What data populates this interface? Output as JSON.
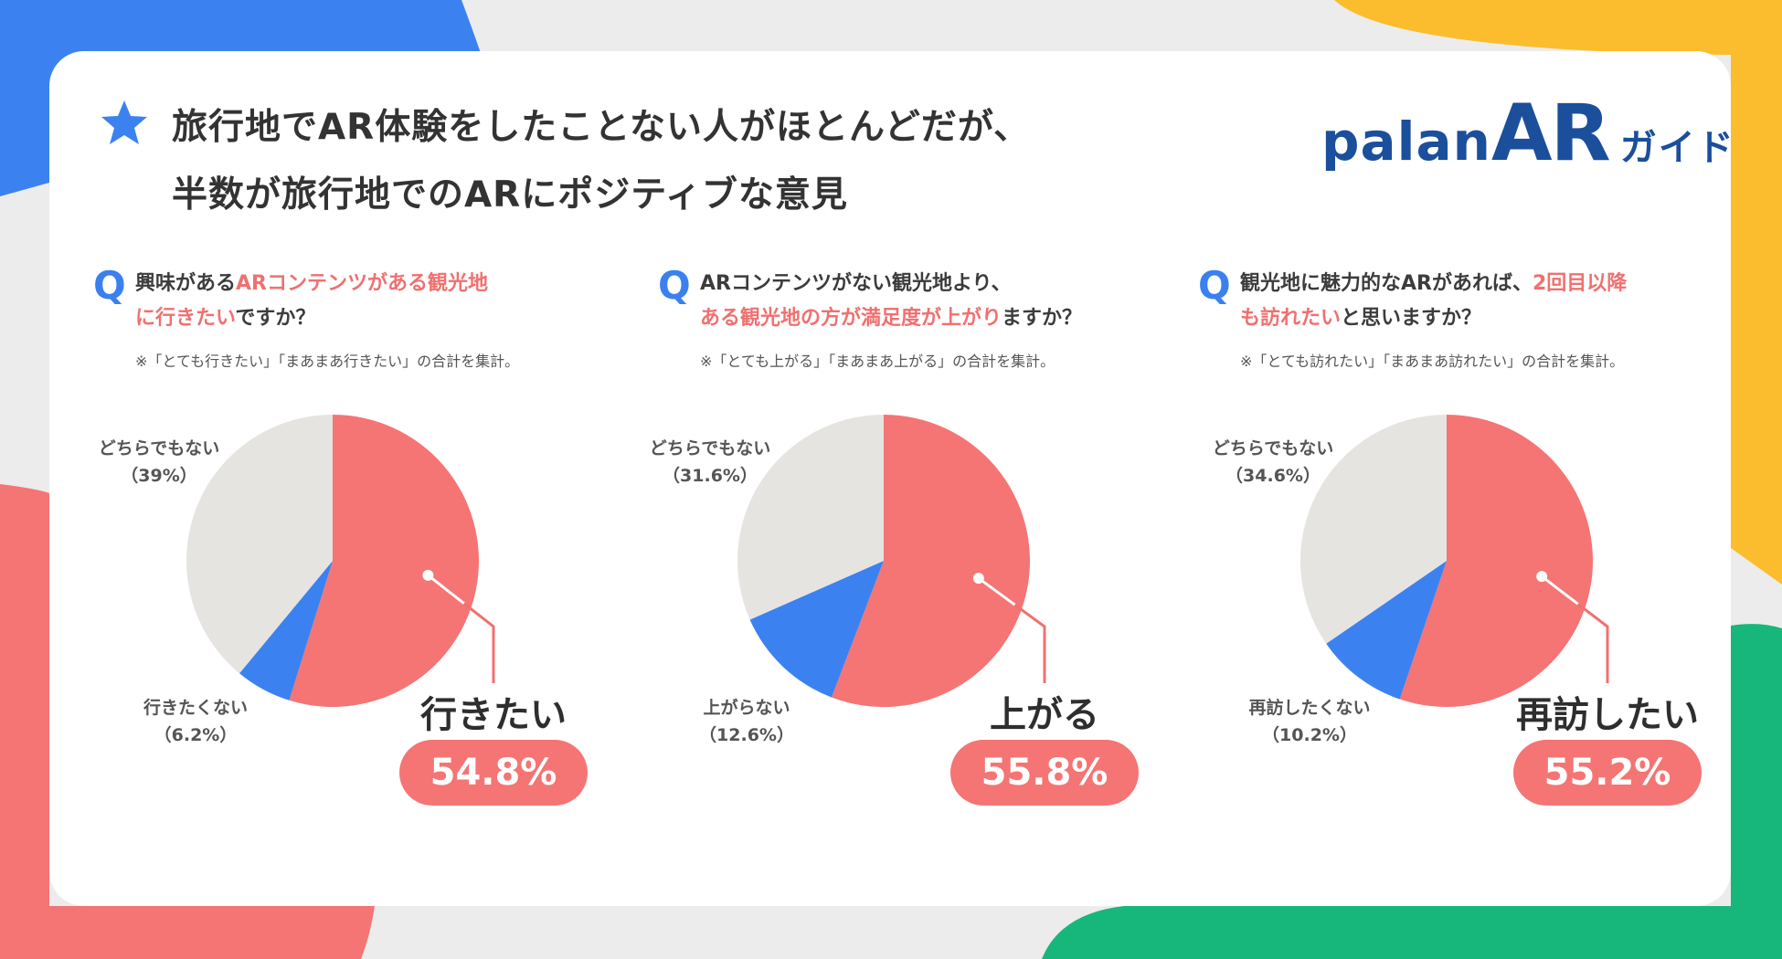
{
  "header": {
    "title_line1": "旅行地でAR体験をしたことない人がほとんどだが、",
    "title_line2": "半数が旅行地でのARにポジティブな意見"
  },
  "logo": {
    "part1": "palan",
    "part2": "AR",
    "part3": "ガイド",
    "color": "#1b4f9c"
  },
  "colors": {
    "positive": "#f57474",
    "negative": "#3b82f0",
    "neutral": "#e6e4e1"
  },
  "chart_data": [
    {
      "type": "pie",
      "question": {
        "q": "Q",
        "line1_normal": "興味がある",
        "line1_highlight": "ARコンテンツがある観光地",
        "line2_highlight": "に行きたい",
        "line2_normal": "ですか？"
      },
      "note": "※「とても行きたい」「まあまあ行きたい」の合計を集計。",
      "slices": [
        {
          "label": "行きたい",
          "value": 54.8,
          "value_label": "54.8%",
          "color": "#f57474"
        },
        {
          "label": "行きたくない",
          "value": 6.2,
          "value_label": "（6.2%）",
          "color": "#3b82f0"
        },
        {
          "label": "どちらでもない",
          "value": 39,
          "value_label": "（39%）",
          "color": "#e6e4e1"
        }
      ]
    },
    {
      "type": "pie",
      "question": {
        "q": "Q",
        "line1_normal": "ARコンテンツがない観光地より、",
        "line1_highlight": "",
        "line2_highlight": "ある観光地の方が満足度が上がり",
        "line2_normal": "ますか？"
      },
      "note": "※「とても上がる」「まあまあ上がる」の合計を集計。",
      "slices": [
        {
          "label": "上がる",
          "value": 55.8,
          "value_label": "55.8%",
          "color": "#f57474"
        },
        {
          "label": "上がらない",
          "value": 12.6,
          "value_label": "（12.6%）",
          "color": "#3b82f0"
        },
        {
          "label": "どちらでもない",
          "value": 31.6,
          "value_label": "（31.6%）",
          "color": "#e6e4e1"
        }
      ]
    },
    {
      "type": "pie",
      "question": {
        "q": "Q",
        "line1_normal": "観光地に魅力的なARがあれば、",
        "line1_highlight": "2回目以降",
        "line2_highlight": "も訪れたい",
        "line2_normal": "と思いますか？"
      },
      "note": "※「とても訪れたい」「まあまあ訪れたい」の合計を集計。",
      "slices": [
        {
          "label": "再訪したい",
          "value": 55.2,
          "value_label": "55.2%",
          "color": "#f57474"
        },
        {
          "label": "再訪したくない",
          "value": 10.2,
          "value_label": "（10.2%）",
          "color": "#3b82f0"
        },
        {
          "label": "どちらでもない",
          "value": 34.6,
          "value_label": "（34.6%）",
          "color": "#e6e4e1"
        }
      ]
    }
  ]
}
